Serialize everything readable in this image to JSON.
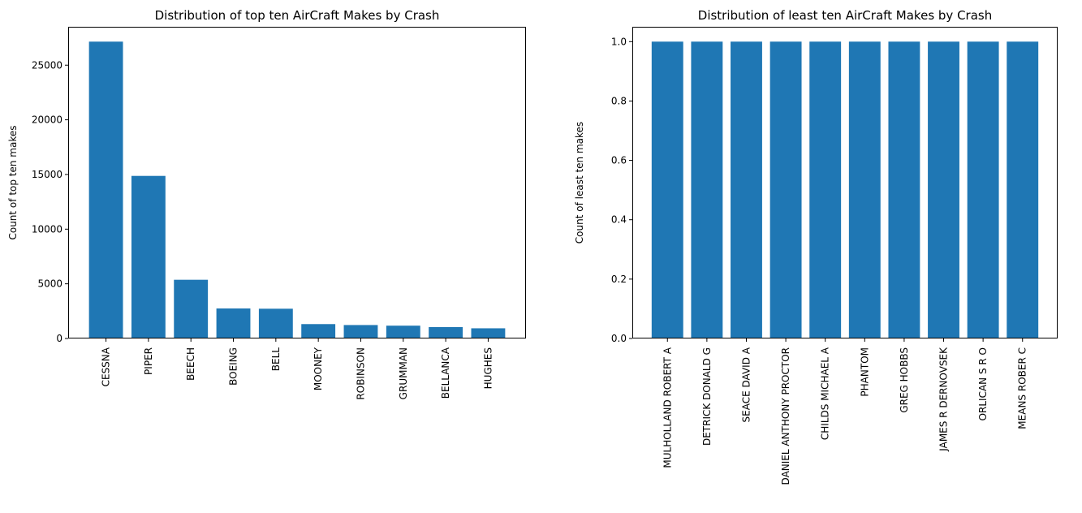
{
  "chart_data": [
    {
      "type": "bar",
      "title": "Distribution of top ten AirCraft Makes by Crash",
      "xlabel": "",
      "ylabel": "Count of top ten makes",
      "categories": [
        "CESSNA",
        "PIPER",
        "BEECH",
        "BOEING",
        "BELL",
        "MOONEY",
        "ROBINSON",
        "GRUMMAN",
        "BELLANCA",
        "HUGHES"
      ],
      "values": [
        27150,
        14870,
        5370,
        2745,
        2722,
        1316,
        1230,
        1172,
        1045,
        932
      ],
      "yticks": [
        0,
        5000,
        10000,
        15000,
        20000,
        25000
      ],
      "ytick_labels": [
        "0",
        "5000",
        "10000",
        "15000",
        "20000",
        "25000"
      ],
      "ylim": [
        0,
        28508
      ],
      "grid": false,
      "bar_color": "#1f77b4"
    },
    {
      "type": "bar",
      "title": "Distribution of least ten AirCraft Makes by Crash",
      "xlabel": "",
      "ylabel": "Count of least ten makes",
      "categories": [
        "MULHOLLAND ROBERT A",
        "DETRICK DONALD G",
        "SEACE DAVID A",
        "DANIEL ANTHONY PROCTOR",
        "CHILDS MICHAEL  A",
        "PHANTOM",
        "GREG HOBBS",
        "JAMES R DERNOVSEK",
        "ORLICAN S R O",
        "MEANS ROBER C"
      ],
      "values": [
        1,
        1,
        1,
        1,
        1,
        1,
        1,
        1,
        1,
        1
      ],
      "yticks": [
        0.0,
        0.2,
        0.4,
        0.6,
        0.8,
        1.0
      ],
      "ytick_labels": [
        "0.0",
        "0.2",
        "0.4",
        "0.6",
        "0.8",
        "1.0"
      ],
      "ylim": [
        0,
        1.05
      ],
      "grid": false,
      "bar_color": "#1f77b4"
    }
  ]
}
